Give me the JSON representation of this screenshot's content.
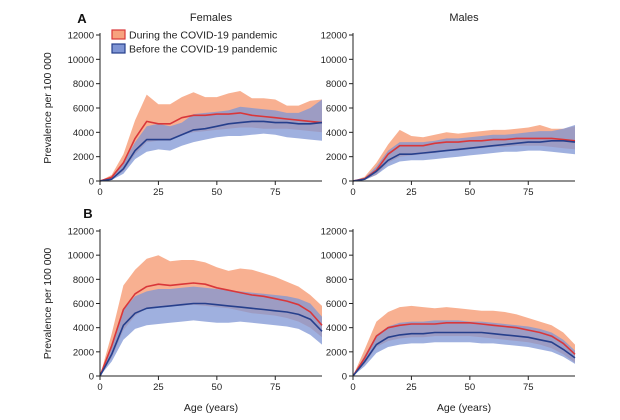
{
  "figure": {
    "column_titles": [
      "Females",
      "Males"
    ],
    "panel_labels": [
      "A",
      "B"
    ],
    "y_label": "Prevalence per 100 000",
    "x_label": "Age (years)",
    "legend": {
      "during": "During the COVID-19 pandemic",
      "before": "Before the COVID-19 pandemic"
    },
    "colors": {
      "during_line": "#d9373a",
      "during_band": "#f7a27e",
      "before_line": "#263f8c",
      "before_band": "#7f95d4"
    }
  },
  "chart_data": [
    {
      "type": "line",
      "panel": "A",
      "column": "Females",
      "x": [
        0,
        5,
        10,
        15,
        20,
        25,
        30,
        35,
        40,
        45,
        50,
        55,
        60,
        65,
        70,
        75,
        80,
        85,
        90,
        95
      ],
      "xlim": [
        0,
        95
      ],
      "ylim": [
        0,
        12000
      ],
      "xticks": [
        0,
        25,
        50,
        75
      ],
      "yticks": [
        0,
        2000,
        4000,
        6000,
        8000,
        10000,
        12000
      ],
      "series": [
        {
          "name": "During the COVID-19 pandemic",
          "values": [
            0,
            300,
            1500,
            3500,
            4900,
            4700,
            4700,
            5200,
            5400,
            5400,
            5500,
            5500,
            5600,
            5400,
            5300,
            5200,
            5100,
            5000,
            4900,
            4800
          ],
          "lower": [
            0,
            150,
            800,
            2200,
            3200,
            3300,
            3300,
            3800,
            4000,
            4100,
            4200,
            4300,
            4400,
            4400,
            4300,
            4300,
            4300,
            4200,
            4100,
            4000
          ],
          "upper": [
            0,
            500,
            2200,
            5000,
            7100,
            6300,
            6300,
            6900,
            7300,
            6900,
            6900,
            7200,
            7400,
            6800,
            6800,
            6700,
            6200,
            6200,
            6600,
            6700
          ]
        },
        {
          "name": "Before the COVID-19 pandemic",
          "values": [
            0,
            150,
            1000,
            2500,
            3400,
            3400,
            3400,
            3800,
            4200,
            4300,
            4500,
            4700,
            4800,
            4900,
            4900,
            4800,
            4800,
            4700,
            4700,
            4800
          ],
          "lower": [
            0,
            80,
            600,
            1800,
            2400,
            2600,
            2500,
            2900,
            3200,
            3400,
            3600,
            3700,
            3700,
            3800,
            3900,
            3800,
            3600,
            3500,
            3400,
            3300
          ],
          "upper": [
            0,
            250,
            1500,
            3200,
            4500,
            4700,
            4500,
            4800,
            5500,
            5600,
            5700,
            5800,
            6100,
            6000,
            5900,
            5800,
            5600,
            5600,
            6000,
            6700
          ]
        }
      ]
    },
    {
      "type": "line",
      "panel": "A",
      "column": "Males",
      "x": [
        0,
        5,
        10,
        15,
        20,
        25,
        30,
        35,
        40,
        45,
        50,
        55,
        60,
        65,
        70,
        75,
        80,
        85,
        90,
        95
      ],
      "xlim": [
        0,
        95
      ],
      "ylim": [
        0,
        12000
      ],
      "xticks": [
        0,
        25,
        50,
        75
      ],
      "yticks": [
        0,
        2000,
        4000,
        6000,
        8000,
        10000,
        12000
      ],
      "series": [
        {
          "name": "During the COVID-19 pandemic",
          "values": [
            0,
            200,
            900,
            2200,
            2900,
            2900,
            2900,
            3100,
            3200,
            3200,
            3300,
            3300,
            3400,
            3400,
            3500,
            3500,
            3500,
            3500,
            3400,
            3300
          ],
          "lower": [
            0,
            100,
            500,
            1500,
            2000,
            2100,
            2200,
            2300,
            2500,
            2500,
            2600,
            2700,
            2800,
            2800,
            2900,
            2900,
            2900,
            2800,
            2700,
            2600
          ],
          "upper": [
            0,
            350,
            1500,
            3000,
            4200,
            3700,
            3600,
            3800,
            4000,
            3900,
            4000,
            4100,
            4200,
            4200,
            4300,
            4400,
            4600,
            4300,
            4300,
            4500
          ]
        },
        {
          "name": "Before the COVID-19 pandemic",
          "values": [
            0,
            150,
            800,
            1700,
            2200,
            2200,
            2300,
            2400,
            2500,
            2600,
            2700,
            2800,
            2900,
            3000,
            3100,
            3200,
            3200,
            3300,
            3300,
            3200
          ],
          "lower": [
            0,
            80,
            500,
            1200,
            1600,
            1700,
            1700,
            1800,
            1900,
            2000,
            2100,
            2200,
            2300,
            2400,
            2400,
            2500,
            2500,
            2400,
            2300,
            2200
          ],
          "upper": [
            0,
            250,
            1200,
            2500,
            3200,
            3200,
            3200,
            3300,
            3500,
            3500,
            3600,
            3700,
            3800,
            3800,
            3900,
            4000,
            4100,
            4100,
            4300,
            4600
          ]
        }
      ]
    },
    {
      "type": "line",
      "panel": "B",
      "column": "Females",
      "x": [
        0,
        5,
        10,
        15,
        20,
        25,
        30,
        35,
        40,
        45,
        50,
        55,
        60,
        65,
        70,
        75,
        80,
        85,
        90,
        95
      ],
      "xlim": [
        0,
        95
      ],
      "ylim": [
        0,
        12000
      ],
      "xticks": [
        0,
        25,
        50,
        75
      ],
      "yticks": [
        0,
        2000,
        4000,
        6000,
        8000,
        10000,
        12000
      ],
      "series": [
        {
          "name": "During the COVID-19 pandemic",
          "values": [
            0,
            2500,
            5500,
            6800,
            7400,
            7600,
            7500,
            7600,
            7700,
            7600,
            7300,
            7100,
            6900,
            6700,
            6600,
            6400,
            6200,
            5900,
            5300,
            4200
          ],
          "lower": [
            0,
            1500,
            3800,
            5000,
            5600,
            5800,
            5800,
            5800,
            5900,
            5800,
            5700,
            5600,
            5400,
            5200,
            5100,
            5000,
            4800,
            4500,
            4000,
            3200
          ],
          "upper": [
            0,
            3500,
            7500,
            8800,
            9700,
            10000,
            9500,
            9600,
            9600,
            9400,
            9000,
            8700,
            8900,
            8800,
            8500,
            8200,
            7800,
            7400,
            6700,
            5800
          ]
        },
        {
          "name": "Before the COVID-19 pandemic",
          "values": [
            0,
            1800,
            4200,
            5200,
            5600,
            5700,
            5800,
            5900,
            6000,
            6000,
            5900,
            5800,
            5700,
            5600,
            5500,
            5400,
            5300,
            5100,
            4700,
            3700
          ],
          "lower": [
            0,
            1200,
            3000,
            3900,
            4200,
            4300,
            4400,
            4500,
            4600,
            4500,
            4400,
            4400,
            4500,
            4400,
            4300,
            4200,
            4100,
            3900,
            3400,
            2600
          ],
          "upper": [
            0,
            2500,
            5500,
            6600,
            7000,
            7200,
            7200,
            7300,
            7400,
            7300,
            7200,
            7100,
            7000,
            6900,
            6800,
            6700,
            6600,
            6400,
            6000,
            4900
          ]
        }
      ]
    },
    {
      "type": "line",
      "panel": "B",
      "column": "Males",
      "x": [
        0,
        5,
        10,
        15,
        20,
        25,
        30,
        35,
        40,
        45,
        50,
        55,
        60,
        65,
        70,
        75,
        80,
        85,
        90,
        95
      ],
      "xlim": [
        0,
        95
      ],
      "ylim": [
        0,
        12000
      ],
      "xticks": [
        0,
        25,
        50,
        75
      ],
      "yticks": [
        0,
        2000,
        4000,
        6000,
        8000,
        10000,
        12000
      ],
      "series": [
        {
          "name": "During the COVID-19 pandemic",
          "values": [
            0,
            1500,
            3300,
            4000,
            4200,
            4300,
            4300,
            4300,
            4400,
            4400,
            4400,
            4300,
            4200,
            4100,
            4000,
            3800,
            3600,
            3300,
            2700,
            1800
          ],
          "lower": [
            0,
            1000,
            2400,
            2900,
            3100,
            3200,
            3200,
            3300,
            3300,
            3300,
            3300,
            3200,
            3100,
            3000,
            2900,
            2800,
            2600,
            2300,
            1800,
            1100
          ],
          "upper": [
            0,
            2200,
            4500,
            5300,
            5700,
            5800,
            5700,
            5600,
            5700,
            5600,
            5500,
            5400,
            5400,
            5300,
            5100,
            4800,
            4500,
            4200,
            3600,
            2600
          ]
        },
        {
          "name": "Before the COVID-19 pandemic",
          "values": [
            0,
            1200,
            2600,
            3200,
            3400,
            3500,
            3500,
            3600,
            3600,
            3600,
            3600,
            3600,
            3500,
            3400,
            3300,
            3200,
            3000,
            2800,
            2200,
            1500
          ],
          "lower": [
            0,
            800,
            1900,
            2400,
            2600,
            2700,
            2700,
            2800,
            2800,
            2800,
            2800,
            2700,
            2700,
            2600,
            2500,
            2400,
            2200,
            2000,
            1600,
            1000
          ],
          "upper": [
            0,
            1700,
            3400,
            4100,
            4400,
            4500,
            4500,
            4600,
            4600,
            4600,
            4500,
            4500,
            4400,
            4300,
            4200,
            4100,
            3900,
            3600,
            3000,
            2100
          ]
        }
      ]
    }
  ]
}
